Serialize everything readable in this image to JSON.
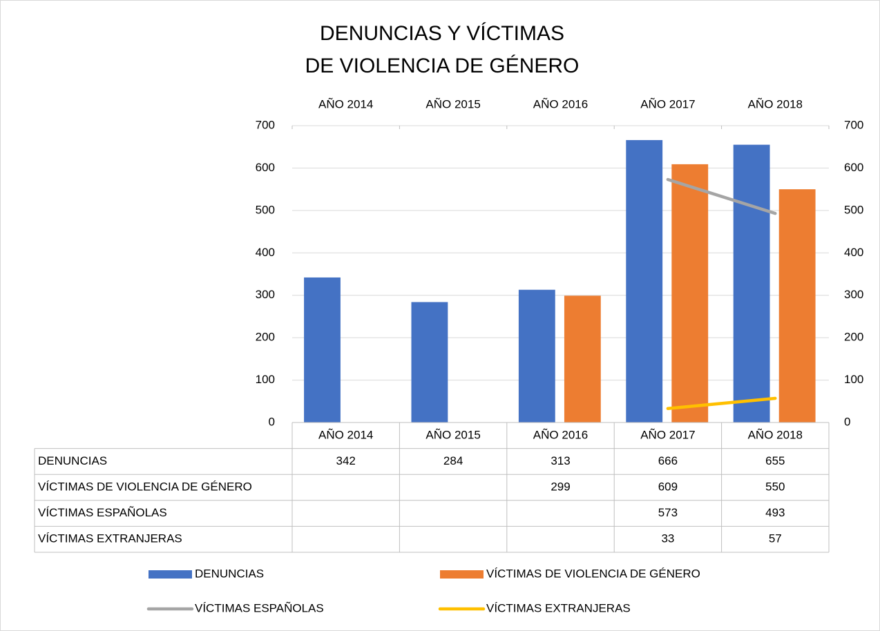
{
  "chart_data": {
    "type": "bar",
    "title": [
      "DENUNCIAS Y VÍCTIMAS",
      "DE VIOLENCIA DE GÉNERO"
    ],
    "categories": [
      "AÑO 2014",
      "AÑO 2015",
      "AÑO 2016",
      "AÑO 2017",
      "AÑO 2018"
    ],
    "series": [
      {
        "name": "DENUNCIAS",
        "type": "bar",
        "color": "#4472c4",
        "values": [
          342,
          284,
          313,
          666,
          655
        ]
      },
      {
        "name": "VÍCTIMAS DE VIOLENCIA DE GÉNERO",
        "type": "bar",
        "color": "#ed7d31",
        "values": [
          null,
          null,
          299,
          609,
          550
        ]
      },
      {
        "name": "VÍCTIMAS ESPAÑOLAS",
        "type": "line",
        "axis": "y2",
        "color": "#a5a5a5",
        "values": [
          null,
          null,
          null,
          573,
          493
        ]
      },
      {
        "name": "VÍCTIMAS EXTRANJERAS",
        "type": "line",
        "axis": "y2",
        "color": "#ffc000",
        "values": [
          null,
          null,
          null,
          33,
          57
        ]
      }
    ],
    "ylim": [
      0,
      700
    ],
    "yticks": [
      0,
      100,
      200,
      300,
      400,
      500,
      600,
      700
    ],
    "y2lim": [
      0,
      700
    ],
    "y2ticks": [
      0,
      100,
      200,
      300,
      400,
      500,
      600,
      700
    ],
    "grid": true,
    "legend": "bottom",
    "data_table": true
  }
}
